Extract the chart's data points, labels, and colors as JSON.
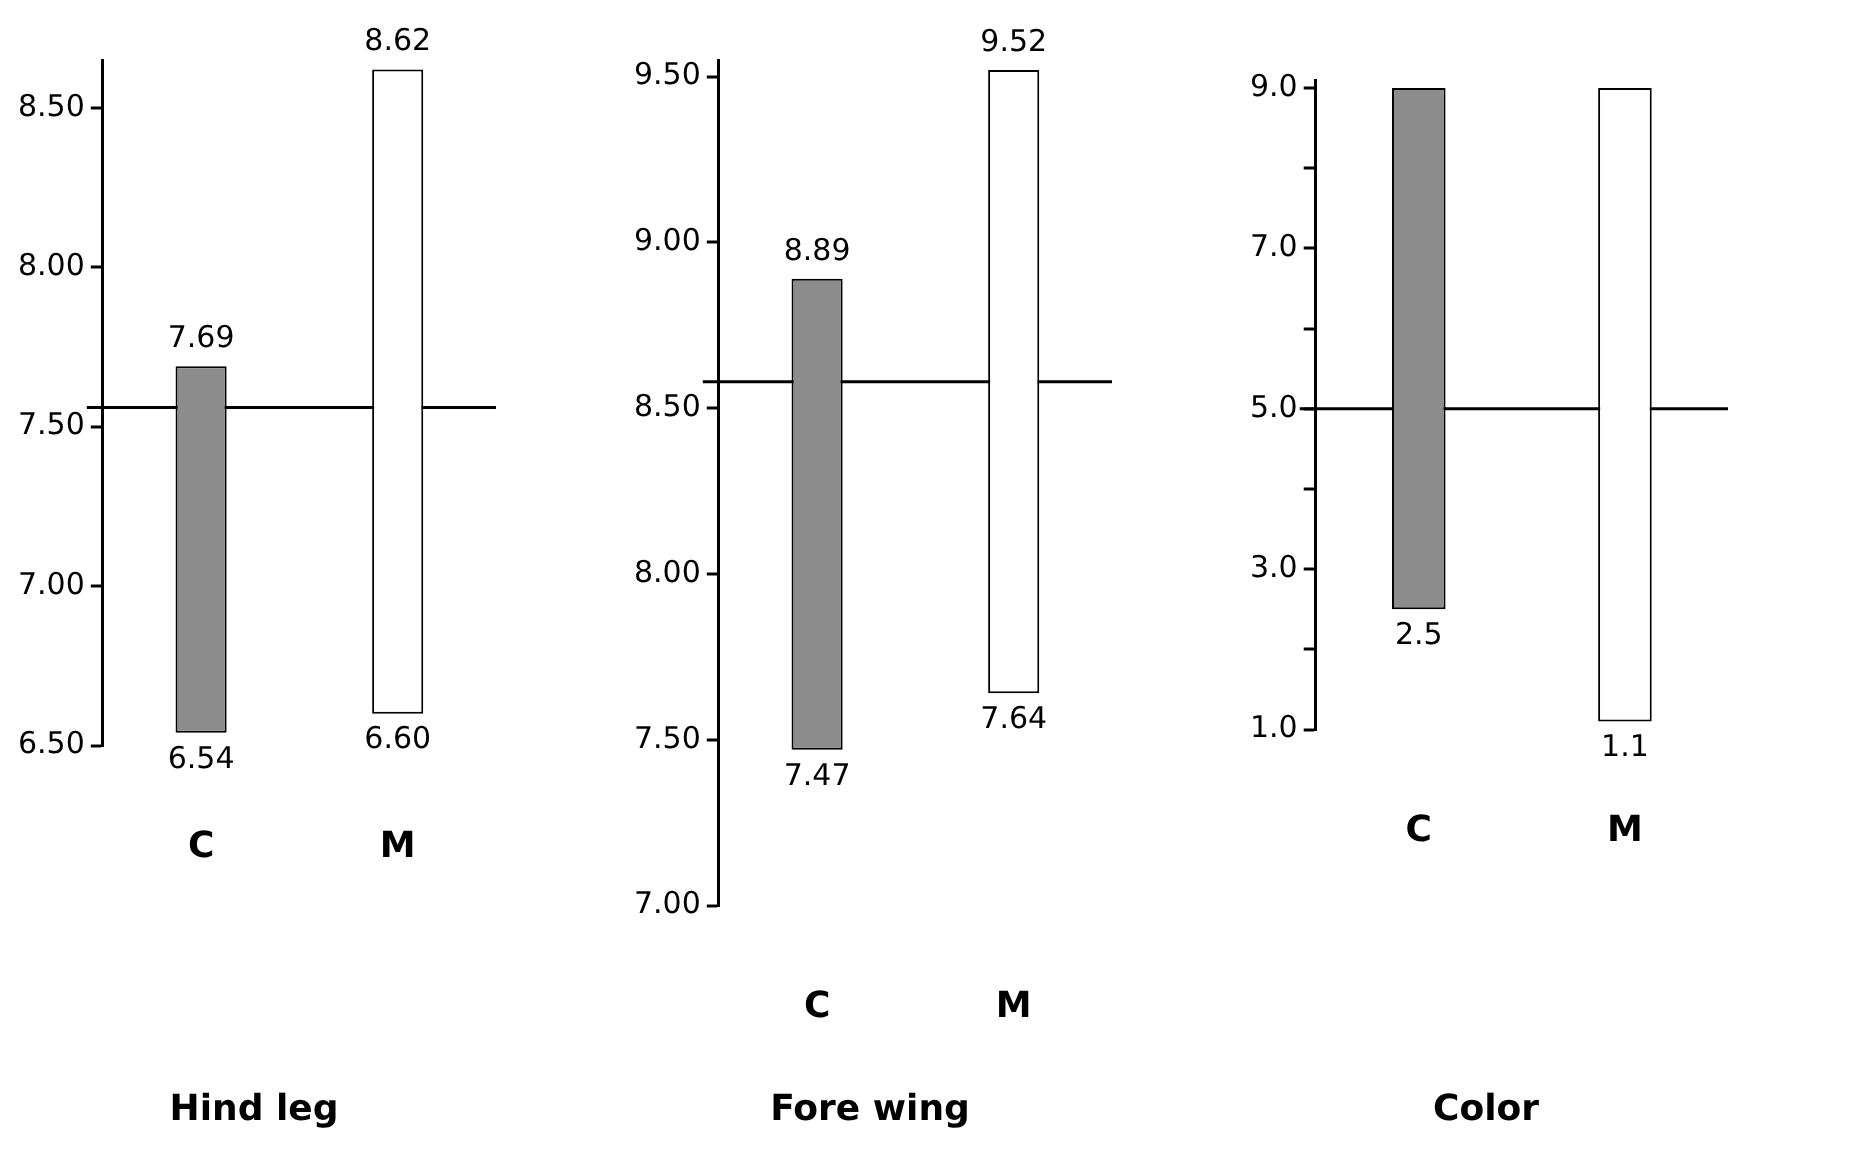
{
  "chart_data": [
    {
      "type": "bar",
      "title": "Hind leg",
      "categories": [
        "C",
        "M"
      ],
      "base": [
        6.54,
        6.6
      ],
      "values": [
        1.15,
        2.02
      ],
      "colors": [
        "#8c8c8c",
        "#ffffff"
      ],
      "ylim": [
        6.5,
        8.65
      ],
      "yticks": [
        {
          "value": 6.5,
          "label": "6.50"
        },
        {
          "value": 7,
          "label": "7.00"
        },
        {
          "value": 7.5,
          "label": "7.50"
        },
        {
          "value": 8,
          "label": "8.00"
        },
        {
          "value": 8.5,
          "label": "8.50"
        }
      ],
      "grid": false,
      "legend": false,
      "ref_lines": [
        {
          "axis": "y",
          "value": 7.56
        }
      ],
      "annotations": [
        {
          "text": "7.69",
          "x": "C",
          "y": 7.69
        },
        {
          "text": "6.54",
          "x": "C",
          "y": 6.54
        },
        {
          "text": "8.62",
          "x": "M",
          "y": 8.62
        },
        {
          "text": "6.60",
          "x": "M",
          "y": 6.6
        }
      ]
    },
    {
      "type": "bar",
      "title": "Fore wing",
      "categories": [
        "C",
        "M"
      ],
      "base": [
        7.47,
        7.64
      ],
      "values": [
        1.42,
        1.88
      ],
      "colors": [
        "#8c8c8c",
        "#ffffff"
      ],
      "ylim": [
        7,
        9.55
      ],
      "yticks": [
        {
          "value": 7,
          "label": "7.00"
        },
        {
          "value": 7.5,
          "label": "7.50"
        },
        {
          "value": 8,
          "label": "8.00"
        },
        {
          "value": 8.5,
          "label": "8.50"
        },
        {
          "value": 9,
          "label": "9.00"
        },
        {
          "value": 9.5,
          "label": "9.50"
        }
      ],
      "grid": false,
      "legend": false,
      "ref_lines": [
        {
          "axis": "y",
          "value": 8.58
        }
      ],
      "annotations": [
        {
          "text": "8.89",
          "x": "C",
          "y": 8.89
        },
        {
          "text": "7.47",
          "x": "C",
          "y": 7.47
        },
        {
          "text": "9.52",
          "x": "M",
          "y": 9.52
        },
        {
          "text": "7.64",
          "x": "M",
          "y": 7.64
        }
      ]
    },
    {
      "type": "bar",
      "title": "Color",
      "categories": [
        "C",
        "M"
      ],
      "base": [
        2.5,
        1.1
      ],
      "values": [
        6.5,
        7.9
      ],
      "colors": [
        "#8c8c8c",
        "#ffffff"
      ],
      "ylim": [
        1,
        9.1
      ],
      "yticks": [
        {
          "value": 1,
          "label": "1.0"
        },
        {
          "value": 2,
          "label": null
        },
        {
          "value": 3,
          "label": "3.0"
        },
        {
          "value": 4,
          "label": null
        },
        {
          "value": 5,
          "label": "5.0"
        },
        {
          "value": 6,
          "label": null
        },
        {
          "value": 7,
          "label": "7.0"
        },
        {
          "value": 8,
          "label": null
        },
        {
          "value": 9,
          "label": "9.0"
        }
      ],
      "grid": false,
      "legend": false,
      "ref_lines": [
        {
          "axis": "y",
          "value": 5
        }
      ],
      "annotations": [
        {
          "text": "2.5",
          "x": "C",
          "y": 2.5
        },
        {
          "text": "1.1",
          "x": "M",
          "y": 1.1
        }
      ]
    }
  ]
}
